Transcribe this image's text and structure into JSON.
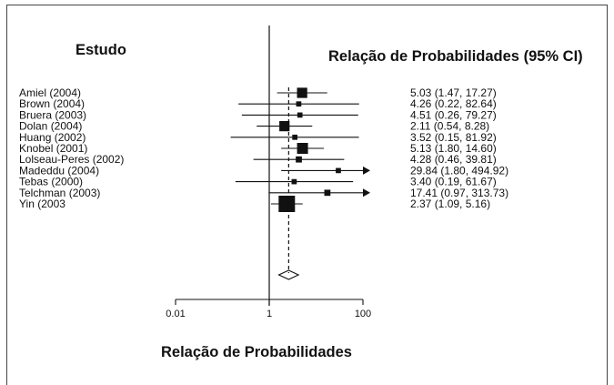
{
  "chart_data": {
    "type": "forest",
    "header_left": "Estudo",
    "header_right": "Relação de Probabilidades (95% CI)",
    "xlabel": "Relação de Probabilidades",
    "x_scale": "log",
    "xlim": [
      0.01,
      100
    ],
    "tick_labels": [
      "0.01",
      "1",
      "100"
    ],
    "tick_values": [
      0.01,
      1,
      100
    ],
    "studies": [
      {
        "name": "Amiel (2004)",
        "or": 5.03,
        "lo": 1.47,
        "hi": 17.27,
        "text": "5.03 (1.47, 17.27)",
        "weight": 0.55
      },
      {
        "name": "Brown (2004)",
        "or": 4.26,
        "lo": 0.22,
        "hi": 82.64,
        "text": "4.26 (0.22, 82.64)",
        "weight": 0.18
      },
      {
        "name": "Bruera (2003)",
        "or": 4.51,
        "lo": 0.26,
        "hi": 79.27,
        "text": "4.51 (0.26, 79.27)",
        "weight": 0.18
      },
      {
        "name": "Dolan (2004)",
        "or": 2.11,
        "lo": 0.54,
        "hi": 8.28,
        "text": "2.11 (0.54, 8.28)",
        "weight": 0.55
      },
      {
        "name": "Huang (2002)",
        "or": 3.52,
        "lo": 0.15,
        "hi": 81.92,
        "text": "3.52 (0.15, 81.92)",
        "weight": 0.18
      },
      {
        "name": "Knobel (2001)",
        "or": 5.13,
        "lo": 1.8,
        "hi": 14.6,
        "text": "5.13 (1.80, 14.60)",
        "weight": 0.6
      },
      {
        "name": "Lolseau-Peres (2002)",
        "or": 4.28,
        "lo": 0.46,
        "hi": 39.81,
        "text": "4.28 (0.46, 39.81)",
        "weight": 0.25
      },
      {
        "name": "Madeddu (2004)",
        "or": 29.84,
        "lo": 1.8,
        "hi": 494.92,
        "text": "29.84 (1.80, 494.92)",
        "weight": 0.18
      },
      {
        "name": "Tebas (2000)",
        "or": 3.4,
        "lo": 0.19,
        "hi": 61.67,
        "text": "3.40 (0.19, 61.67)",
        "weight": 0.18
      },
      {
        "name": "Telchman (2003)",
        "or": 17.41,
        "lo": 0.97,
        "hi": 313.73,
        "text": "17.41 (0.97, 313.73)",
        "weight": 0.25
      },
      {
        "name": "Yin (2003",
        "or": 2.37,
        "lo": 1.09,
        "hi": 5.16,
        "text": "2.37 (1.09, 5.16)",
        "weight": 1.0
      }
    ],
    "pooled": {
      "or": 2.6,
      "lo": 1.6,
      "hi": 4.2
    },
    "colors": {
      "ink": "#111111",
      "frame": "#444444"
    }
  }
}
